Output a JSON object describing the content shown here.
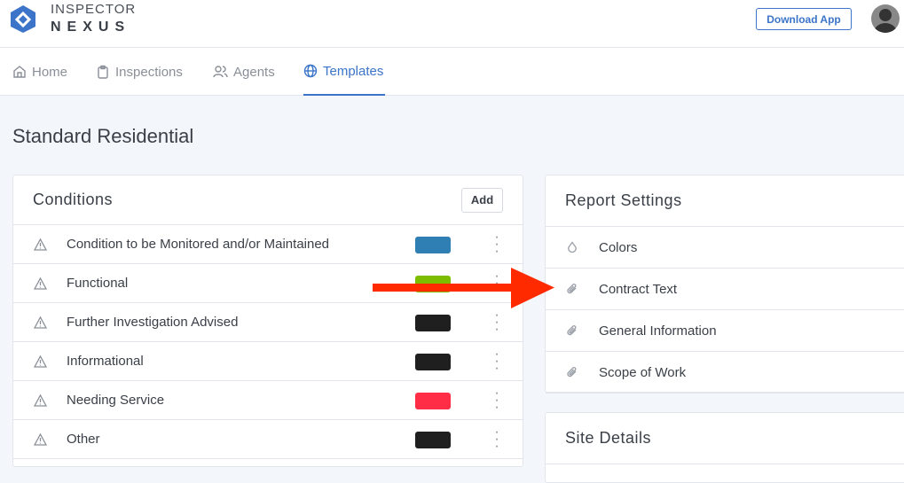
{
  "header": {
    "brand_line1": "INSPECTOR",
    "brand_line2": "NEXUS",
    "download_label": "Download App"
  },
  "nav": {
    "tabs": [
      {
        "label": "Home",
        "icon": "home-icon"
      },
      {
        "label": "Inspections",
        "icon": "clipboard-icon"
      },
      {
        "label": "Agents",
        "icon": "users-icon"
      },
      {
        "label": "Templates",
        "icon": "globe-icon",
        "active": true
      }
    ]
  },
  "page_title": "Standard Residential",
  "conditions": {
    "title": "Conditions",
    "add_label": "Add",
    "items": [
      {
        "label": "Condition to be Monitored and/or Maintained",
        "color": "#2f7fb5"
      },
      {
        "label": "Functional",
        "color": "#7cbd00"
      },
      {
        "label": "Further Investigation Advised",
        "color": "#1f1f1f"
      },
      {
        "label": "Informational",
        "color": "#1f1f1f"
      },
      {
        "label": "Needing Service",
        "color": "#ff2d45"
      },
      {
        "label": "Other",
        "color": "#1f1f1f"
      }
    ]
  },
  "report_settings": {
    "title": "Report Settings",
    "items": [
      {
        "label": "Colors",
        "icon": "droplet-icon"
      },
      {
        "label": "Contract Text",
        "icon": "paperclip-icon"
      },
      {
        "label": "General Information",
        "icon": "paperclip-icon"
      },
      {
        "label": "Scope of Work",
        "icon": "paperclip-icon"
      }
    ]
  },
  "site_details": {
    "title": "Site Details"
  },
  "annotation": {
    "arrow_color": "#ff2a00"
  }
}
